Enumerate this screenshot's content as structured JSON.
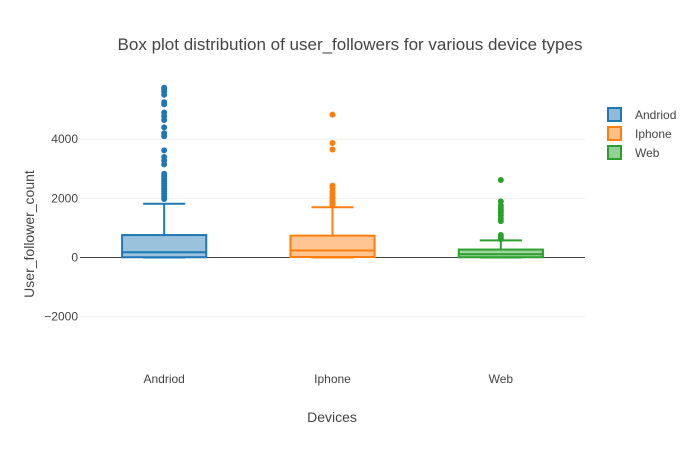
{
  "chart_data": {
    "type": "box",
    "title": "Box plot distribution of user_followers for various device types",
    "xlabel": "Devices",
    "ylabel": "User_follower_count",
    "categories": [
      "Andriod",
      "Iphone",
      "Web"
    ],
    "ylim": [
      -3800,
      6000
    ],
    "yticks": [
      -2000,
      0,
      2000,
      4000
    ],
    "ytick_labels": [
      "−2000",
      "0",
      "2000",
      "4000"
    ],
    "grid": true,
    "legend_position": "top-right",
    "series": [
      {
        "name": "Andriod",
        "color": "#1f77b4",
        "fill": "#8fbbd9",
        "min": 0,
        "q1": 10,
        "median": 180,
        "q3": 760,
        "whisker_low": 0,
        "whisker_high": 1820,
        "outliers": [
          1980,
          2060,
          2150,
          2250,
          2330,
          2420,
          2500,
          2580,
          2660,
          2750,
          2830,
          3150,
          3280,
          3400,
          3620,
          4100,
          4200,
          4400,
          4650,
          4780,
          4900,
          5180,
          5250,
          5500,
          5620,
          5700,
          5740
        ]
      },
      {
        "name": "Iphone",
        "color": "#ff7f0e",
        "fill": "#ffbf86",
        "min": 0,
        "q1": 20,
        "median": 240,
        "q3": 740,
        "whisker_low": 0,
        "whisker_high": 1700,
        "outliers": [
          1780,
          1850,
          1920,
          1990,
          2060,
          2150,
          2230,
          2350,
          2430,
          3650,
          3870,
          4830
        ]
      },
      {
        "name": "Web",
        "color": "#2ca02c",
        "fill": "#95cf95",
        "min": 0,
        "q1": 10,
        "median": 110,
        "q3": 270,
        "whisker_low": 0,
        "whisker_high": 580,
        "outliers": [
          620,
          700,
          760,
          1230,
          1320,
          1420,
          1520,
          1600,
          1680,
          1760,
          1900,
          2620
        ]
      }
    ]
  }
}
